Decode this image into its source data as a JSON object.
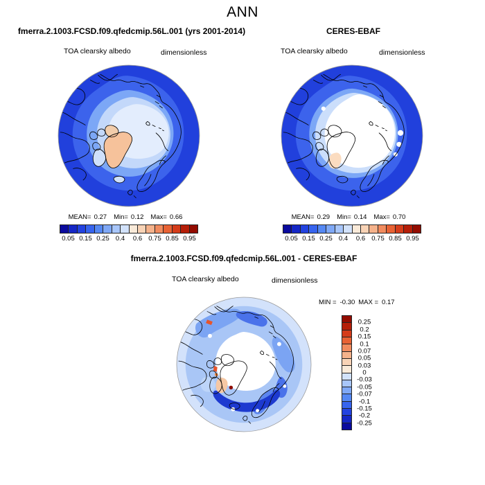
{
  "title": "ANN",
  "panels": {
    "model": {
      "title": "fmerra.2.1003.FCSD.f09.qfedcmip.56L.001 (yrs 2001-2014)",
      "field_label": "TOA clearsky albedo",
      "units": "dimensionless",
      "stats": {
        "mean_label": "MEAN=",
        "mean": "0.27",
        "min_label": "Min=",
        "min": "0.12",
        "max_label": "Max=",
        "max": "0.66"
      }
    },
    "obs": {
      "title": "CERES-EBAF",
      "field_label": "TOA clearsky albedo",
      "units": "dimensionless",
      "stats": {
        "mean_label": "MEAN=",
        "mean": "0.29",
        "min_label": "Min=",
        "min": "0.14",
        "max_label": "Max=",
        "max": "0.70"
      }
    },
    "diff": {
      "title": "fmerra.2.1003.FCSD.f09.qfedcmip.56L.001 - CERES-EBAF",
      "field_label": "TOA clearsky albedo",
      "units": "dimensionless",
      "stats": {
        "min_label": "MIN =",
        "min": "-0.30",
        "max_label": "MAX =",
        "max": "0.17"
      }
    }
  },
  "colorbar": {
    "palette": [
      "#0b0b9e",
      "#1527c6",
      "#2343e0",
      "#3764ee",
      "#5588f3",
      "#7fa8f6",
      "#a8c6fa",
      "#d2e2fb",
      "#f9ead9",
      "#f8d3b6",
      "#f5b28b",
      "#f18b5e",
      "#e86234",
      "#d53c1a",
      "#b51e08",
      "#930c00"
    ],
    "h_tick_labels": [
      "0.05",
      "0.15",
      "0.25",
      "0.4",
      "0.6",
      "0.75",
      "0.85",
      "0.95"
    ],
    "h_tick_boundaries": [
      1,
      3,
      5,
      7,
      9,
      11,
      13,
      15
    ],
    "v_labels": [
      "0.25",
      "0.2",
      "0.15",
      "0.1",
      "0.07",
      "0.05",
      "0.03",
      "0",
      "-0.03",
      "-0.05",
      "-0.07",
      "-0.1",
      "-0.15",
      "-0.2",
      "-0.25"
    ]
  },
  "chart_data": [
    {
      "type": "heatmap",
      "subtype": "filled-contour north polar stereographic map",
      "panel": "top-left",
      "title": "fmerra.2.1003.FCSD.f09.qfedcmip.56L.001 (yrs 2001-2014)",
      "season": "ANN",
      "variable": "TOA clearsky albedo",
      "units": "dimensionless",
      "stats": {
        "mean": 0.27,
        "min": 0.12,
        "max": 0.66
      },
      "contour_levels": [
        0.05,
        0.1,
        0.15,
        0.2,
        0.25,
        0.3,
        0.4,
        0.5,
        0.6,
        0.7,
        0.75,
        0.8,
        0.85,
        0.9,
        0.95
      ],
      "labeled_levels": [
        0.05,
        0.15,
        0.25,
        0.4,
        0.6,
        0.75,
        0.85,
        0.95
      ],
      "palette": [
        "#0b0b9e",
        "#1527c6",
        "#2343e0",
        "#3764ee",
        "#5588f3",
        "#7fa8f6",
        "#a8c6fa",
        "#d2e2fb",
        "#f9ead9",
        "#f8d3b6",
        "#f5b28b",
        "#f18b5e",
        "#e86234",
        "#d53c1a",
        "#b51e08",
        "#930c00"
      ],
      "legend_position": "bottom-horizontal",
      "visible_pattern": "open ocean deep blue (~0.1-0.2), Arctic shelf seas light blue, central Arctic pale (~0.3-0.5), Greenland peach (~0.6-0.7)"
    },
    {
      "type": "heatmap",
      "subtype": "filled-contour north polar stereographic map",
      "panel": "top-right",
      "title": "CERES-EBAF",
      "season": "ANN",
      "variable": "TOA clearsky albedo",
      "units": "dimensionless",
      "stats": {
        "mean": 0.29,
        "min": 0.14,
        "max": 0.7
      },
      "contour_levels": [
        0.05,
        0.1,
        0.15,
        0.2,
        0.25,
        0.3,
        0.4,
        0.5,
        0.6,
        0.7,
        0.75,
        0.8,
        0.85,
        0.9,
        0.95
      ],
      "labeled_levels": [
        0.05,
        0.15,
        0.25,
        0.4,
        0.6,
        0.75,
        0.85,
        0.95
      ],
      "palette": [
        "#0b0b9e",
        "#1527c6",
        "#2343e0",
        "#3764ee",
        "#5588f3",
        "#7fa8f6",
        "#a8c6fa",
        "#d2e2fb",
        "#f9ead9",
        "#f8d3b6",
        "#f5b28b",
        "#f18b5e",
        "#e86234",
        "#d53c1a",
        "#b51e08",
        "#930c00"
      ],
      "legend_position": "bottom-horizontal",
      "visible_pattern": "large white region (~0.5) over central Arctic ice pack, pale peach over south Greenland, blues over ocean"
    },
    {
      "type": "heatmap",
      "subtype": "filled-contour north polar stereographic difference map",
      "panel": "bottom-center",
      "title": "fmerra.2.1003.FCSD.f09.qfedcmip.56L.001 - CERES-EBAF",
      "season": "ANN",
      "variable": "TOA clearsky albedo",
      "units": "dimensionless",
      "stats": {
        "min": -0.3,
        "max": 0.17
      },
      "contour_levels": [
        -0.25,
        -0.2,
        -0.15,
        -0.1,
        -0.07,
        -0.05,
        -0.03,
        0,
        0.03,
        0.05,
        0.07,
        0.1,
        0.15,
        0.2,
        0.25
      ],
      "palette": [
        "#0b0b9e",
        "#1527c6",
        "#2343e0",
        "#3764ee",
        "#5588f3",
        "#7fa8f6",
        "#a8c6fa",
        "#d2e2fb",
        "#f9ead9",
        "#f8d3b6",
        "#f5b28b",
        "#f18b5e",
        "#e86234",
        "#d53c1a",
        "#b51e08",
        "#930c00"
      ],
      "legend_position": "right-vertical",
      "visible_pattern": "mostly negative (blue) bias over oceans, near-zero (white) over central Arctic, small positive (red) spots along Alaska, Baffin Bay and southeast Greenland coasts"
    }
  ]
}
